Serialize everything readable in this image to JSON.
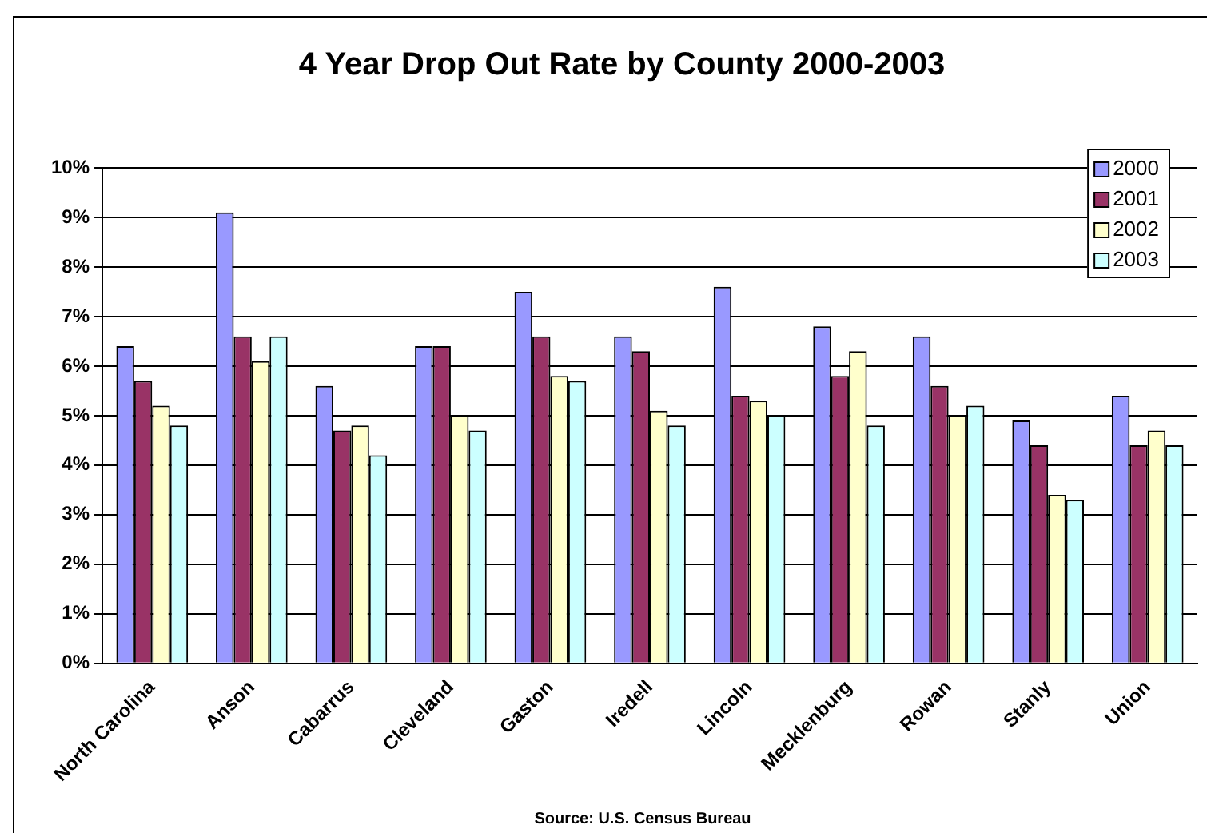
{
  "chart_data": {
    "type": "bar",
    "title": "4 Year Drop Out Rate by County 2000-2003",
    "categories": [
      "North Carolina",
      "Anson",
      "Cabarrus",
      "Cleveland",
      "Gaston",
      "Iredell",
      "Lincoln",
      "Mecklenburg",
      "Rowan",
      "Stanly",
      "Union"
    ],
    "series": [
      {
        "name": "2000",
        "color": "#9999ff",
        "values": [
          6.4,
          9.1,
          5.6,
          6.4,
          7.5,
          6.6,
          7.6,
          6.8,
          6.6,
          4.9,
          5.4
        ]
      },
      {
        "name": "2001",
        "color": "#993366",
        "values": [
          5.7,
          6.6,
          4.7,
          6.4,
          6.6,
          6.3,
          5.4,
          5.8,
          5.6,
          4.4,
          4.4
        ]
      },
      {
        "name": "2002",
        "color": "#ffffcc",
        "values": [
          5.2,
          6.1,
          4.8,
          5.0,
          5.8,
          5.1,
          5.3,
          6.3,
          5.0,
          3.4,
          4.7
        ]
      },
      {
        "name": "2003",
        "color": "#ccffff",
        "values": [
          4.8,
          6.6,
          4.2,
          4.7,
          5.7,
          4.8,
          5.0,
          4.8,
          5.2,
          3.3,
          4.4
        ]
      }
    ],
    "ylim": [
      0,
      10
    ],
    "yticks": [
      {
        "value": 0,
        "label": "0%"
      },
      {
        "value": 1,
        "label": "1%"
      },
      {
        "value": 2,
        "label": "2%"
      },
      {
        "value": 3,
        "label": "3%"
      },
      {
        "value": 4,
        "label": "4%"
      },
      {
        "value": 5,
        "label": "5%"
      },
      {
        "value": 6,
        "label": "6%"
      },
      {
        "value": 7,
        "label": "7%"
      },
      {
        "value": 8,
        "label": "8%"
      },
      {
        "value": 9,
        "label": "9%"
      },
      {
        "value": 10,
        "label": "10%"
      }
    ],
    "grid": "y",
    "legend": "top right",
    "annotations": [
      "Source: U.S. Census Bureau"
    ]
  }
}
